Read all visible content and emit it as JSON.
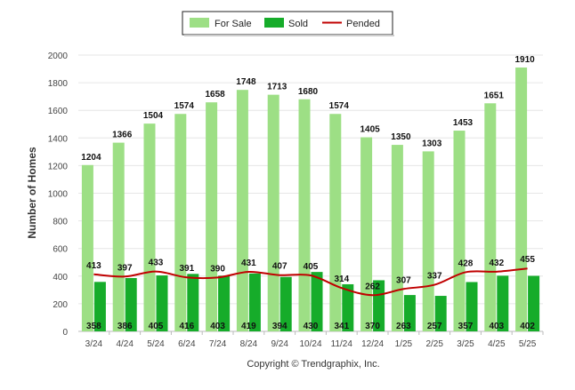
{
  "chart_data": {
    "type": "bar",
    "categories": [
      "3/24",
      "4/24",
      "5/24",
      "6/24",
      "7/24",
      "8/24",
      "9/24",
      "10/24",
      "11/24",
      "12/24",
      "1/25",
      "2/25",
      "3/25",
      "4/25",
      "5/25"
    ],
    "series": [
      {
        "name": "For Sale",
        "type": "bar",
        "color": "#9ddf85",
        "values": [
          1204,
          1366,
          1504,
          1574,
          1658,
          1748,
          1713,
          1680,
          1574,
          1405,
          1350,
          1303,
          1453,
          1651,
          1910
        ]
      },
      {
        "name": "Sold",
        "type": "bar",
        "color": "#16ac2a",
        "values": [
          358,
          386,
          405,
          416,
          403,
          419,
          394,
          430,
          341,
          370,
          263,
          257,
          357,
          403,
          402
        ]
      },
      {
        "name": "Pended",
        "type": "line",
        "color": "#c00000",
        "values": [
          413,
          397,
          433,
          391,
          390,
          431,
          407,
          405,
          314,
          262,
          307,
          337,
          428,
          432,
          455
        ]
      }
    ],
    "ylabel": "Number of Homes",
    "xlabel": "",
    "ylim": [
      0,
      2000
    ],
    "yticks": [
      0,
      200,
      400,
      600,
      800,
      1000,
      1200,
      1400,
      1600,
      1800,
      2000
    ],
    "grid": true,
    "legend_placement": "top-center"
  },
  "footer": {
    "copyright": "Copyright © Trendgraphix, Inc."
  }
}
